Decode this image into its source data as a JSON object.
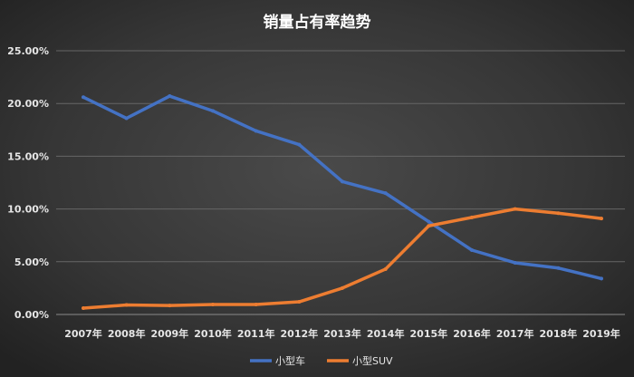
{
  "chart_data": {
    "type": "line",
    "title": "销量占有率趋势",
    "categories": [
      "2007年",
      "2008年",
      "2009年",
      "2010年",
      "2011年",
      "2012年",
      "2013年",
      "2014年",
      "2015年",
      "2016年",
      "2017年",
      "2018年",
      "2019年"
    ],
    "y_ticks": [
      "0.00%",
      "5.00%",
      "10.00%",
      "15.00%",
      "20.00%",
      "25.00%"
    ],
    "ylim": [
      0,
      25
    ],
    "grid": true,
    "legend_position": "bottom",
    "series": [
      {
        "name": "小型车",
        "color": "#4472c4",
        "values": [
          20.6,
          18.6,
          20.7,
          19.3,
          17.4,
          16.1,
          12.6,
          11.5,
          8.8,
          6.1,
          4.9,
          4.4,
          3.4
        ]
      },
      {
        "name": "小型SUV",
        "color": "#ed7d31",
        "values": [
          0.6,
          0.9,
          0.85,
          0.95,
          0.95,
          1.2,
          2.5,
          4.3,
          8.4,
          9.2,
          10.0,
          9.6,
          9.1
        ]
      }
    ]
  }
}
